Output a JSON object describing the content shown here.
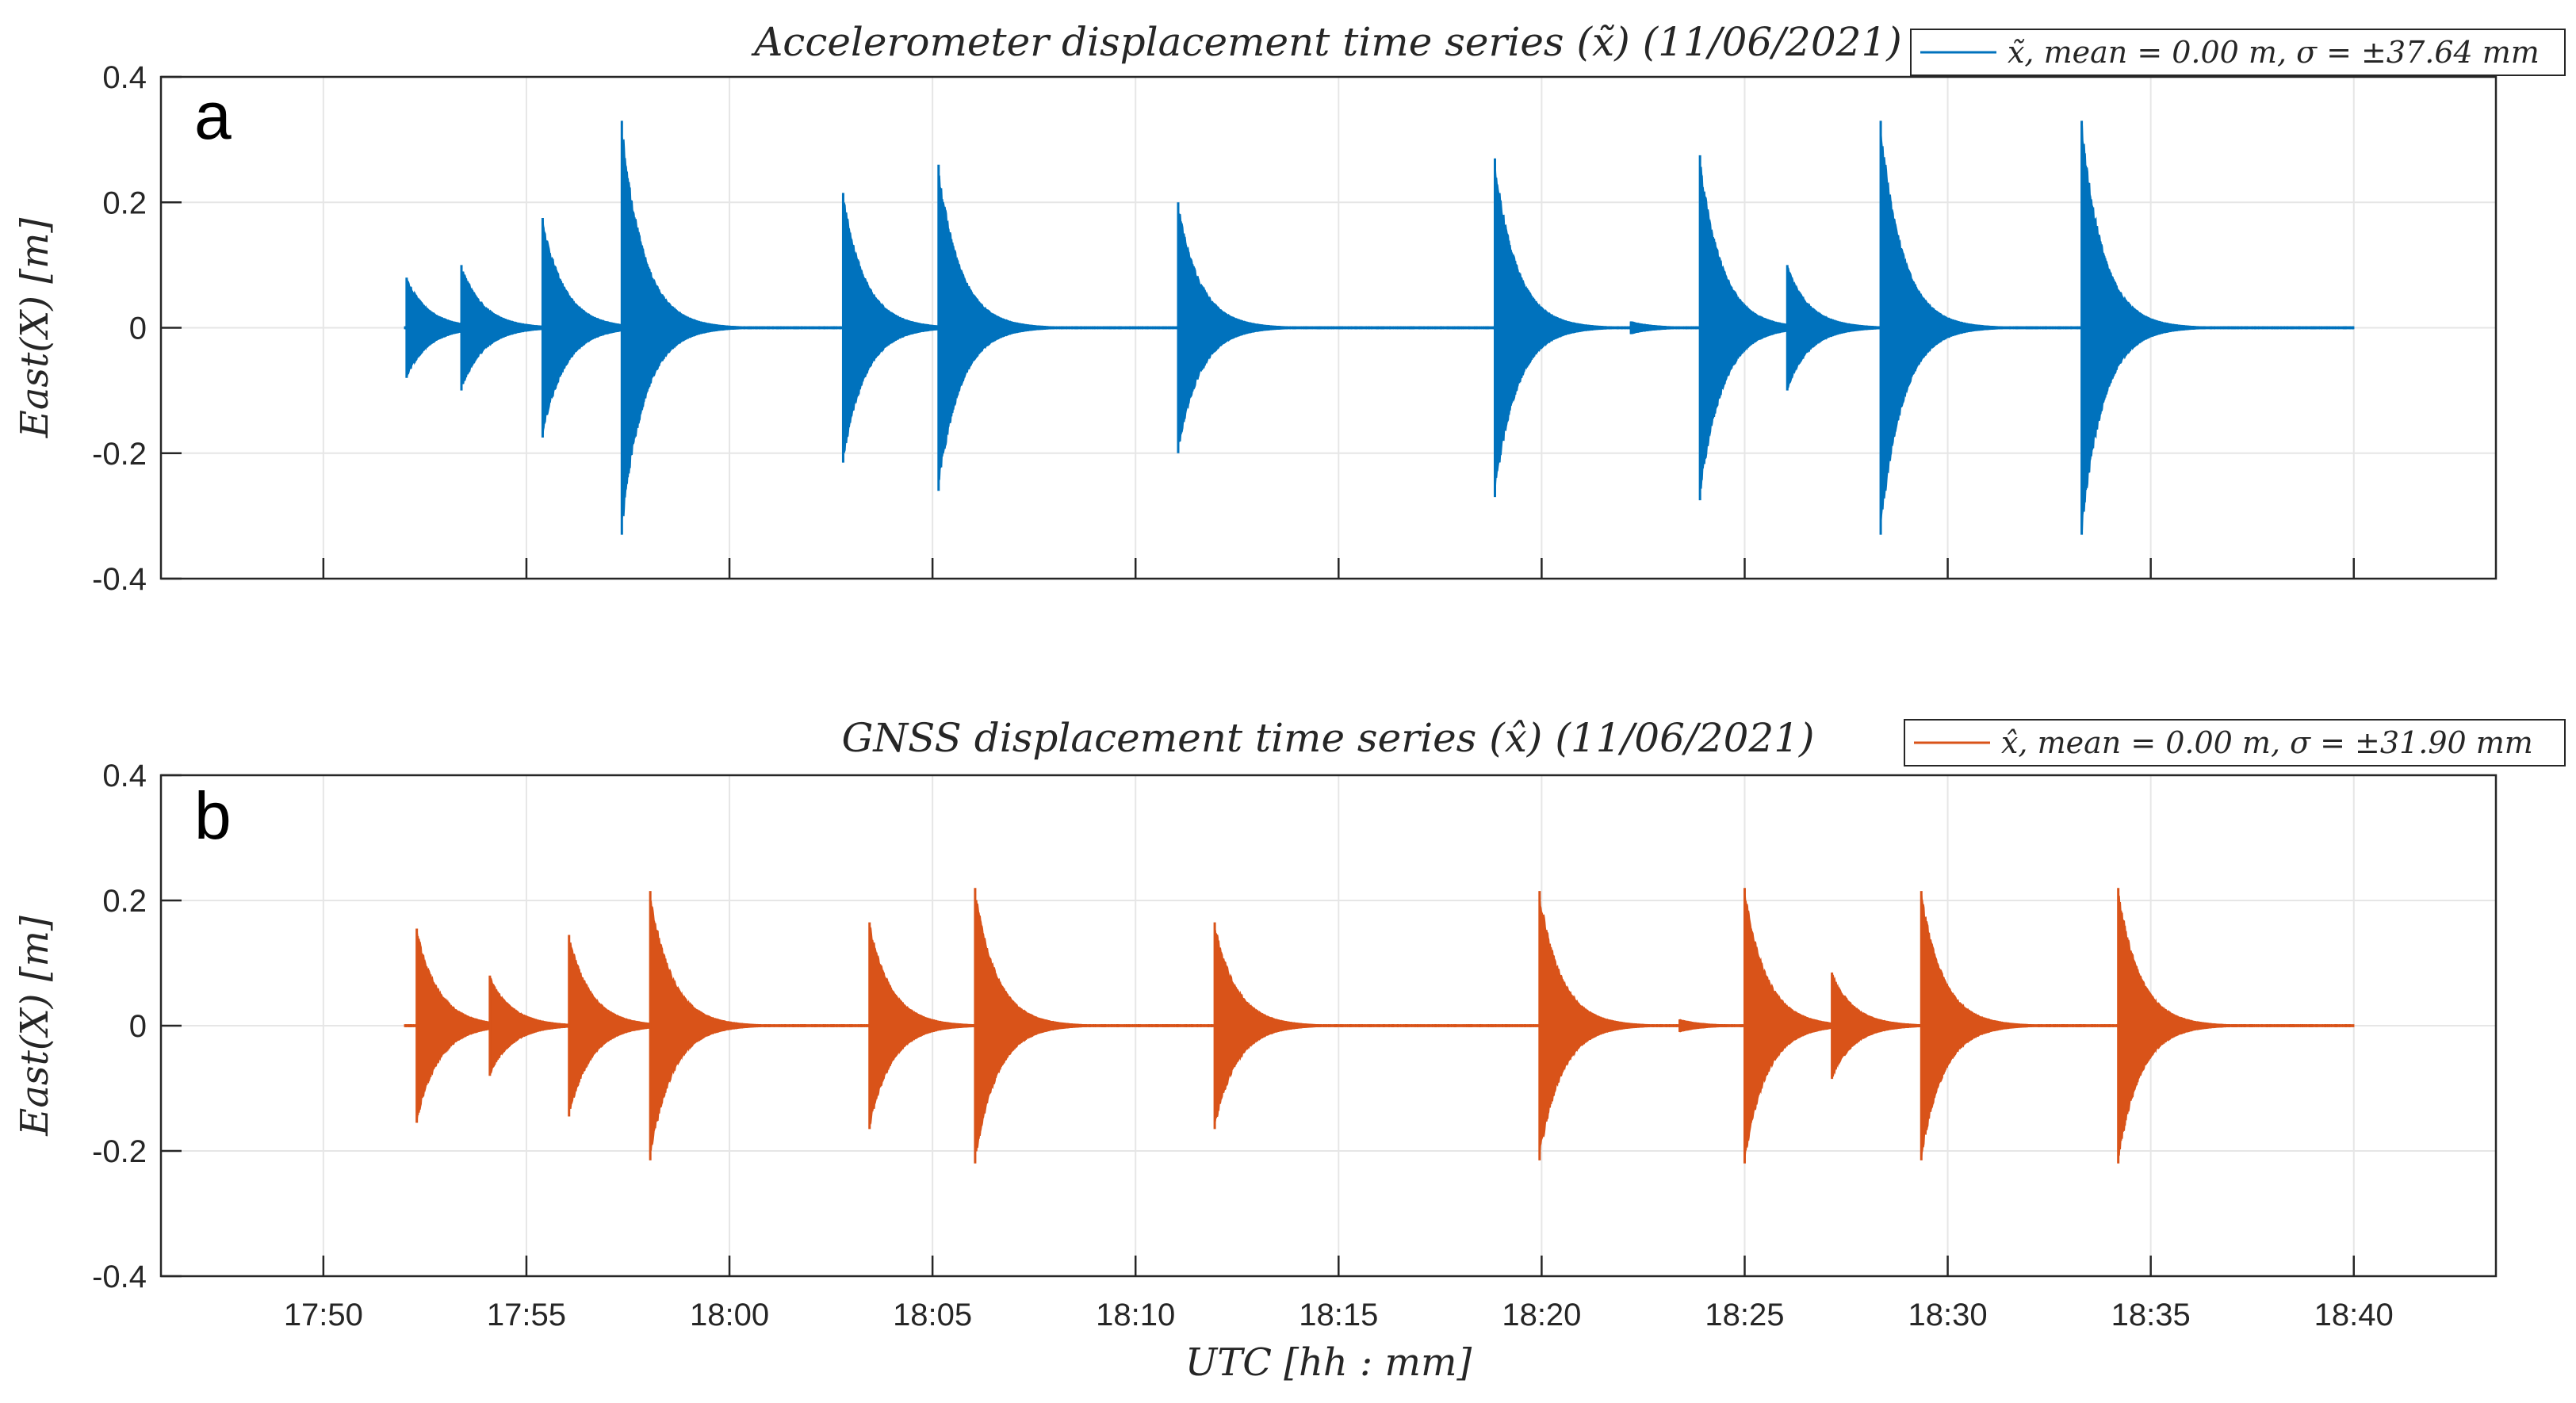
{
  "chart_data": [
    {
      "type": "line",
      "panel_label": "a",
      "title": "Accelerometer displacement time series (x̃) (11/06/2021)",
      "xlabel": "UTC [hh : mm]",
      "ylabel": "East(X) [m]",
      "ylim": [
        -0.4,
        0.4
      ],
      "yticks": [
        -0.4,
        -0.2,
        0,
        0.2,
        0.4
      ],
      "ytick_labels": [
        "-0.4",
        "-0.2",
        "0",
        "0.2",
        "0.4"
      ],
      "xlim_minutes": [
        1066,
        1123.5
      ],
      "xticks_minutes": [
        1070,
        1075,
        1080,
        1085,
        1090,
        1095,
        1100,
        1105,
        1110,
        1115,
        1120
      ],
      "xtick_labels": [
        "17:50",
        "17:55",
        "18:00",
        "18:05",
        "18:10",
        "18:15",
        "18:20",
        "18:25",
        "18:30",
        "18:35",
        "18:40"
      ],
      "show_xtick_labels": false,
      "grid": true,
      "legend_position": "top-right",
      "series": [
        {
          "name": "x̃, mean = 0.00 m, σ = ±37.64 mm",
          "color": "#0072BD",
          "data_start_minutes": 1072.0,
          "data_end_minutes": 1120.0,
          "events": [
            {
              "t": 1072.05,
              "amp": 0.08
            },
            {
              "t": 1073.4,
              "amp": 0.1
            },
            {
              "t": 1075.4,
              "amp": 0.175
            },
            {
              "t": 1077.35,
              "amp": 0.33
            },
            {
              "t": 1082.8,
              "amp": 0.215
            },
            {
              "t": 1085.15,
              "amp": 0.26
            },
            {
              "t": 1091.05,
              "amp": 0.2
            },
            {
              "t": 1098.85,
              "amp": 0.27
            },
            {
              "t": 1102.2,
              "amp": 0.01
            },
            {
              "t": 1103.9,
              "amp": 0.275
            },
            {
              "t": 1106.05,
              "amp": 0.1
            },
            {
              "t": 1108.35,
              "amp": 0.33
            },
            {
              "t": 1113.3,
              "amp": 0.33
            }
          ]
        }
      ]
    },
    {
      "type": "line",
      "panel_label": "b",
      "title": "GNSS displacement time series (x̂) (11/06/2021)",
      "xlabel": "UTC [hh : mm]",
      "ylabel": "East(X) [m]",
      "ylim": [
        -0.4,
        0.4
      ],
      "yticks": [
        -0.4,
        -0.2,
        0,
        0.2,
        0.4
      ],
      "ytick_labels": [
        "-0.4",
        "-0.2",
        "0",
        "0.2",
        "0.4"
      ],
      "xlim_minutes": [
        1066,
        1123.5
      ],
      "xticks_minutes": [
        1070,
        1075,
        1080,
        1085,
        1090,
        1095,
        1100,
        1105,
        1110,
        1115,
        1120
      ],
      "xtick_labels": [
        "17:50",
        "17:55",
        "18:00",
        "18:05",
        "18:10",
        "18:15",
        "18:20",
        "18:25",
        "18:30",
        "18:35",
        "18:40"
      ],
      "show_xtick_labels": true,
      "grid": true,
      "legend_position": "top-right",
      "series": [
        {
          "name": "x̂, mean = 0.00 m, σ = ±31.90 mm",
          "color": "#D95319",
          "data_start_minutes": 1072.0,
          "data_end_minutes": 1120.0,
          "events": [
            {
              "t": 1072.3,
              "amp": 0.155
            },
            {
              "t": 1074.1,
              "amp": 0.08
            },
            {
              "t": 1076.05,
              "amp": 0.145
            },
            {
              "t": 1078.05,
              "amp": 0.215
            },
            {
              "t": 1083.45,
              "amp": 0.165
            },
            {
              "t": 1086.05,
              "amp": 0.22
            },
            {
              "t": 1091.95,
              "amp": 0.165
            },
            {
              "t": 1099.95,
              "amp": 0.215
            },
            {
              "t": 1103.4,
              "amp": 0.01
            },
            {
              "t": 1105.0,
              "amp": 0.22
            },
            {
              "t": 1107.15,
              "amp": 0.085
            },
            {
              "t": 1109.35,
              "amp": 0.215
            },
            {
              "t": 1114.2,
              "amp": 0.22
            }
          ]
        }
      ]
    }
  ]
}
